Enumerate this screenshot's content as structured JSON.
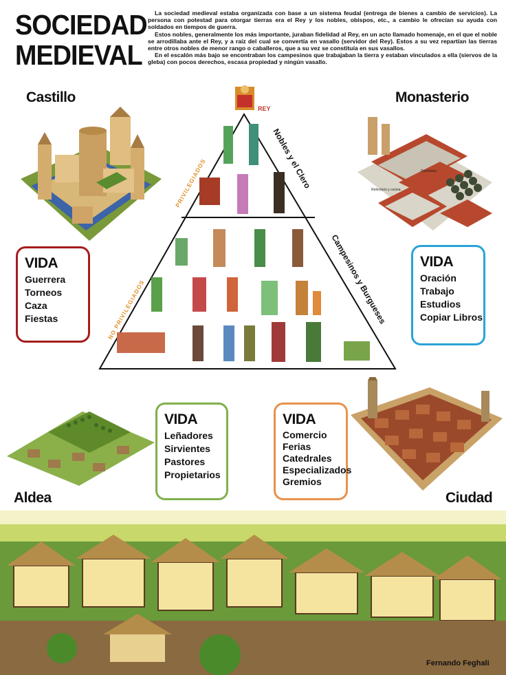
{
  "title": {
    "line1": "SOCIEDAD",
    "line2": "MEDIEVAL"
  },
  "intro": {
    "p1": "La sociedad medieval estaba organizada con base a un sistema feudal (entrega de bienes a cambio de servicios). La persona con potestad para otorgar tierras era el Rey y los nobles, obispos, etc., a cambio le ofrecían su ayuda con soldados en tiempos de guerra.",
    "p2": "Estos nobles, generalmente los más importante, juraban fidelidad al Rey, en un acto llamado homenaje, en el que el noble se arrodillaba ante el Rey, y a raíz del cual se convertía en vasallo (servidor del Rey). Estos a su vez repartían las tierras entre otros nobles de menor rango o caballeros, que a su vez se constituía en sus vasallos.",
    "p3": "En el escalón más bajo se encontraban los campesinos que trabajaban la tierra y estaban vinculados a ella (siervos de la gleba) con pocos derechos, escasa propiedad y ningún vasallo."
  },
  "sections": {
    "castillo": "Castillo",
    "monasterio": "Monasterio",
    "aldea": "Aldea",
    "ciudad": "Ciudad"
  },
  "pyramid": {
    "rey": "REY",
    "nobles_clero": "Nobles y el Clero",
    "campesinos_burgueses": "Campesinos y Burgueses",
    "privilegiados": "PRIVILEGIADOS",
    "no_privilegiados": "NO PRIVILEGIADOS"
  },
  "vida_castillo": {
    "heading": "VIDA",
    "items": [
      "Guerrera",
      "Torneos",
      "Caza",
      "Fiestas"
    ],
    "color": "#a61c1c"
  },
  "vida_monasterio": {
    "heading": "VIDA",
    "items": [
      "Oración",
      "Trabajo",
      "Estudios",
      "Copiar Libros"
    ],
    "color": "#29a3d6"
  },
  "vida_aldea": {
    "heading": "VIDA",
    "items": [
      "Leñadores",
      "Sirvientes",
      "Pastores",
      "Propietarios"
    ],
    "color": "#7fb04a"
  },
  "vida_ciudad": {
    "heading": "VIDA",
    "items": [
      "Comercio",
      "Ferias",
      "Catedrales",
      "Especializados",
      "Gremios"
    ],
    "color": "#e8924a"
  },
  "monastery_labels": {
    "refectorio": "Refectorio y cocina",
    "dormitorio": "Dormitorio"
  },
  "credit": "Fernando Feghali"
}
